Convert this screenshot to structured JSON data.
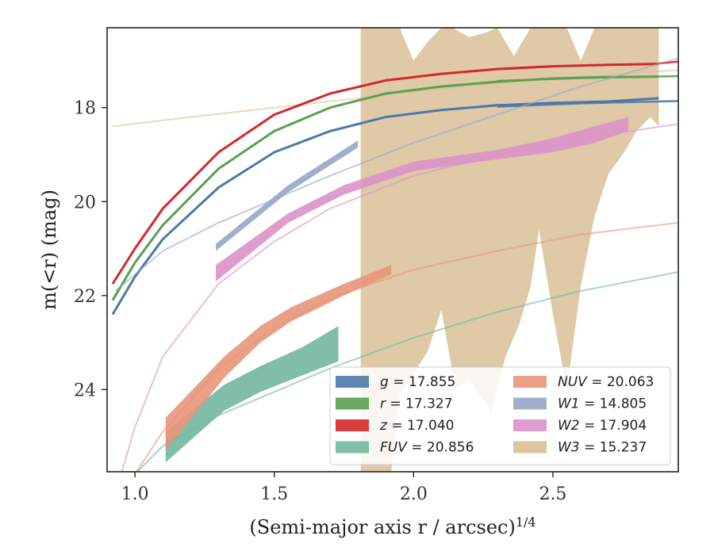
{
  "chart_data": {
    "type": "line",
    "title": "",
    "xlabel": "(Semi-major axis r / arcsec)",
    "xlabel_exponent": "1/4",
    "ylabel": "m(<r) (mag)",
    "xlim": [
      0.9,
      2.95
    ],
    "ylim": [
      25.75,
      16.3
    ],
    "y_inverted": true,
    "x_ticks": [
      {
        "value": 1.0,
        "label": "1.0"
      },
      {
        "value": 1.5,
        "label": "1.5"
      },
      {
        "value": 2.0,
        "label": "2.0"
      },
      {
        "value": 2.5,
        "label": "2.5"
      }
    ],
    "y_ticks": [
      {
        "value": 18,
        "label": "18"
      },
      {
        "value": 20,
        "label": "20"
      },
      {
        "value": 22,
        "label": "22"
      },
      {
        "value": 24,
        "label": "24"
      }
    ],
    "grid": false,
    "legend_position": "lower-right",
    "series": [
      {
        "name": "g = 17.855",
        "band": "g",
        "mag": "17.855",
        "color": "#4c78a8",
        "data": [
          [
            0.92,
            22.4
          ],
          [
            1.0,
            21.6
          ],
          [
            1.1,
            20.8
          ],
          [
            1.3,
            19.7
          ],
          [
            1.5,
            18.95
          ],
          [
            1.7,
            18.5
          ],
          [
            1.9,
            18.2
          ],
          [
            2.1,
            18.05
          ],
          [
            2.3,
            17.95
          ],
          [
            2.5,
            17.9
          ],
          [
            2.7,
            17.87
          ],
          [
            2.88,
            17.8
          ]
        ],
        "model": [
          [
            2.3,
            17.98
          ],
          [
            2.6,
            17.91
          ],
          [
            2.95,
            17.86
          ]
        ]
      },
      {
        "name": "r = 17.327",
        "band": "r",
        "mag": "17.327",
        "color": "#59a14f",
        "data": [
          [
            0.92,
            22.1
          ],
          [
            1.0,
            21.3
          ],
          [
            1.1,
            20.5
          ],
          [
            1.3,
            19.3
          ],
          [
            1.5,
            18.5
          ],
          [
            1.7,
            18.0
          ],
          [
            1.9,
            17.7
          ],
          [
            2.1,
            17.55
          ],
          [
            2.3,
            17.45
          ],
          [
            2.5,
            17.38
          ],
          [
            2.7,
            17.35
          ],
          [
            2.88,
            17.34
          ]
        ],
        "model": [
          [
            2.3,
            17.43
          ],
          [
            2.6,
            17.37
          ],
          [
            2.95,
            17.33
          ]
        ]
      },
      {
        "name": "z = 17.040",
        "band": "z",
        "mag": "17.040",
        "color": "#d62728",
        "data": [
          [
            0.92,
            21.75
          ],
          [
            1.0,
            21.0
          ],
          [
            1.1,
            20.15
          ],
          [
            1.3,
            18.95
          ],
          [
            1.5,
            18.15
          ],
          [
            1.7,
            17.7
          ],
          [
            1.9,
            17.42
          ],
          [
            2.1,
            17.28
          ],
          [
            2.3,
            17.18
          ],
          [
            2.5,
            17.12
          ],
          [
            2.7,
            17.09
          ],
          [
            2.88,
            17.07
          ]
        ],
        "model": [
          [
            2.88,
            17.06
          ],
          [
            2.95,
            17.02
          ]
        ]
      },
      {
        "name": "FUV = 20.856",
        "band": "FUV",
        "mag": "20.856",
        "color": "#72b7a1",
        "data_low": [
          [
            1.11,
            25.55
          ],
          [
            1.32,
            24.45
          ],
          [
            1.45,
            24.05
          ],
          [
            1.6,
            23.7
          ],
          [
            1.73,
            23.4
          ]
        ],
        "data_high": [
          [
            1.11,
            24.9
          ],
          [
            1.32,
            23.9
          ],
          [
            1.45,
            23.5
          ],
          [
            1.6,
            23.1
          ],
          [
            1.73,
            22.65
          ]
        ],
        "model": [
          [
            1.0,
            25.8
          ],
          [
            1.1,
            25.2
          ],
          [
            1.3,
            24.55
          ],
          [
            1.5,
            24.05
          ],
          [
            1.7,
            23.55
          ],
          [
            2.0,
            22.9
          ],
          [
            2.3,
            22.35
          ],
          [
            2.6,
            21.9
          ],
          [
            2.95,
            21.5
          ]
        ]
      },
      {
        "name": "NUV = 20.063",
        "band": "NUV",
        "mag": "20.063",
        "color": "#e8957a",
        "data_low": [
          [
            1.11,
            25.3
          ],
          [
            1.32,
            23.75
          ],
          [
            1.45,
            23.0
          ],
          [
            1.56,
            22.55
          ],
          [
            1.75,
            22.0
          ],
          [
            1.92,
            21.55
          ]
        ],
        "data_high": [
          [
            1.11,
            24.6
          ],
          [
            1.32,
            23.3
          ],
          [
            1.45,
            22.65
          ],
          [
            1.56,
            22.25
          ],
          [
            1.75,
            21.75
          ],
          [
            1.92,
            21.35
          ]
        ],
        "model": [
          [
            1.0,
            25.8
          ],
          [
            1.1,
            24.9
          ],
          [
            1.3,
            23.55
          ],
          [
            1.5,
            22.7
          ],
          [
            1.7,
            22.05
          ],
          [
            2.0,
            21.45
          ],
          [
            2.3,
            21.05
          ],
          [
            2.6,
            20.7
          ],
          [
            2.95,
            20.45
          ]
        ]
      },
      {
        "name": "W1 = 14.805",
        "band": "W1",
        "mag": "14.805",
        "color": "#97a6c8",
        "data_low": [
          [
            1.29,
            21.05
          ],
          [
            1.55,
            19.8
          ],
          [
            1.8,
            18.85
          ]
        ],
        "data_high": [
          [
            1.29,
            20.9
          ],
          [
            1.55,
            19.65
          ],
          [
            1.8,
            18.7
          ]
        ],
        "model": [
          [
            0.93,
            21.9
          ],
          [
            1.1,
            21.05
          ],
          [
            1.3,
            20.45
          ],
          [
            1.5,
            19.95
          ],
          [
            1.7,
            19.45
          ],
          [
            2.0,
            18.75
          ],
          [
            2.3,
            18.15
          ],
          [
            2.6,
            17.55
          ],
          [
            2.95,
            16.95
          ]
        ]
      },
      {
        "name": "W2 = 17.904",
        "band": "W2",
        "mag": "17.904",
        "color": "#dc92c8",
        "data_low": [
          [
            1.29,
            21.7
          ],
          [
            1.55,
            20.45
          ],
          [
            1.75,
            19.85
          ],
          [
            2.0,
            19.35
          ],
          [
            2.3,
            19.1
          ],
          [
            2.5,
            18.95
          ],
          [
            2.65,
            18.75
          ],
          [
            2.77,
            18.5
          ]
        ],
        "data_high": [
          [
            1.29,
            21.35
          ],
          [
            1.55,
            20.25
          ],
          [
            1.75,
            19.65
          ],
          [
            2.0,
            19.15
          ],
          [
            2.3,
            18.9
          ],
          [
            2.5,
            18.65
          ],
          [
            2.65,
            18.4
          ],
          [
            2.77,
            18.2
          ]
        ],
        "model": [
          [
            0.95,
            25.8
          ],
          [
            1.0,
            24.8
          ],
          [
            1.1,
            23.3
          ],
          [
            1.3,
            21.75
          ],
          [
            1.5,
            20.85
          ],
          [
            1.7,
            20.15
          ],
          [
            2.0,
            19.45
          ],
          [
            2.3,
            19.0
          ],
          [
            2.6,
            18.65
          ],
          [
            2.95,
            18.35
          ]
        ]
      },
      {
        "name": "W3 = 15.237",
        "band": "W3",
        "mag": "15.237",
        "color": "#d9bf98",
        "data_low": [
          [
            1.81,
            25.75
          ],
          [
            1.92,
            25.75
          ],
          [
            1.95,
            24.1
          ],
          [
            2.05,
            23.2
          ],
          [
            2.1,
            22.3
          ],
          [
            2.15,
            24.0
          ],
          [
            2.2,
            23.8
          ],
          [
            2.28,
            24.5
          ],
          [
            2.33,
            23.3
          ],
          [
            2.38,
            22.6
          ],
          [
            2.42,
            21.8
          ],
          [
            2.45,
            20.6
          ],
          [
            2.5,
            22.4
          ],
          [
            2.55,
            24.0
          ],
          [
            2.6,
            21.8
          ],
          [
            2.65,
            20.3
          ],
          [
            2.7,
            19.4
          ],
          [
            2.75,
            19.0
          ],
          [
            2.8,
            18.5
          ],
          [
            2.85,
            18.2
          ],
          [
            2.88,
            18.4
          ]
        ],
        "data_high": [
          [
            1.81,
            16.3
          ],
          [
            1.95,
            16.3
          ],
          [
            2.0,
            17.0
          ],
          [
            2.05,
            16.6
          ],
          [
            2.1,
            16.3
          ],
          [
            2.14,
            16.3
          ],
          [
            2.2,
            16.5
          ],
          [
            2.26,
            16.4
          ],
          [
            2.3,
            16.3
          ],
          [
            2.36,
            16.9
          ],
          [
            2.42,
            16.3
          ],
          [
            2.5,
            16.3
          ],
          [
            2.55,
            16.3
          ],
          [
            2.6,
            17.0
          ],
          [
            2.65,
            16.3
          ],
          [
            2.88,
            16.3
          ]
        ],
        "model": [
          [
            0.92,
            18.4
          ],
          [
            1.2,
            18.2
          ],
          [
            1.5,
            18.0
          ],
          [
            1.8,
            17.8
          ],
          [
            2.1,
            17.6
          ],
          [
            2.4,
            17.42
          ],
          [
            2.7,
            17.3
          ],
          [
            2.95,
            17.2
          ]
        ]
      }
    ]
  }
}
